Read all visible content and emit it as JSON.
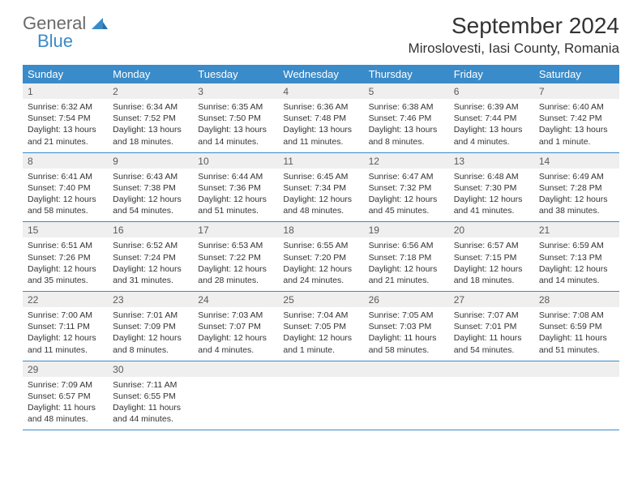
{
  "logo": {
    "general": "General",
    "blue": "Blue"
  },
  "title": "September 2024",
  "location": "Miroslovesti, Iasi County, Romania",
  "dayNames": [
    "Sunday",
    "Monday",
    "Tuesday",
    "Wednesday",
    "Thursday",
    "Friday",
    "Saturday"
  ],
  "colors": {
    "headerBar": "#3a8bc9",
    "dayNumBg": "#efefef",
    "text": "#333333",
    "logoGray": "#6a6a6a",
    "logoBlue": "#3a8bc9"
  },
  "weeks": [
    [
      {
        "n": "1",
        "sr": "6:32 AM",
        "ss": "7:54 PM",
        "dl": "13 hours and 21 minutes."
      },
      {
        "n": "2",
        "sr": "6:34 AM",
        "ss": "7:52 PM",
        "dl": "13 hours and 18 minutes."
      },
      {
        "n": "3",
        "sr": "6:35 AM",
        "ss": "7:50 PM",
        "dl": "13 hours and 14 minutes."
      },
      {
        "n": "4",
        "sr": "6:36 AM",
        "ss": "7:48 PM",
        "dl": "13 hours and 11 minutes."
      },
      {
        "n": "5",
        "sr": "6:38 AM",
        "ss": "7:46 PM",
        "dl": "13 hours and 8 minutes."
      },
      {
        "n": "6",
        "sr": "6:39 AM",
        "ss": "7:44 PM",
        "dl": "13 hours and 4 minutes."
      },
      {
        "n": "7",
        "sr": "6:40 AM",
        "ss": "7:42 PM",
        "dl": "13 hours and 1 minute."
      }
    ],
    [
      {
        "n": "8",
        "sr": "6:41 AM",
        "ss": "7:40 PM",
        "dl": "12 hours and 58 minutes."
      },
      {
        "n": "9",
        "sr": "6:43 AM",
        "ss": "7:38 PM",
        "dl": "12 hours and 54 minutes."
      },
      {
        "n": "10",
        "sr": "6:44 AM",
        "ss": "7:36 PM",
        "dl": "12 hours and 51 minutes."
      },
      {
        "n": "11",
        "sr": "6:45 AM",
        "ss": "7:34 PM",
        "dl": "12 hours and 48 minutes."
      },
      {
        "n": "12",
        "sr": "6:47 AM",
        "ss": "7:32 PM",
        "dl": "12 hours and 45 minutes."
      },
      {
        "n": "13",
        "sr": "6:48 AM",
        "ss": "7:30 PM",
        "dl": "12 hours and 41 minutes."
      },
      {
        "n": "14",
        "sr": "6:49 AM",
        "ss": "7:28 PM",
        "dl": "12 hours and 38 minutes."
      }
    ],
    [
      {
        "n": "15",
        "sr": "6:51 AM",
        "ss": "7:26 PM",
        "dl": "12 hours and 35 minutes."
      },
      {
        "n": "16",
        "sr": "6:52 AM",
        "ss": "7:24 PM",
        "dl": "12 hours and 31 minutes."
      },
      {
        "n": "17",
        "sr": "6:53 AM",
        "ss": "7:22 PM",
        "dl": "12 hours and 28 minutes."
      },
      {
        "n": "18",
        "sr": "6:55 AM",
        "ss": "7:20 PM",
        "dl": "12 hours and 24 minutes."
      },
      {
        "n": "19",
        "sr": "6:56 AM",
        "ss": "7:18 PM",
        "dl": "12 hours and 21 minutes."
      },
      {
        "n": "20",
        "sr": "6:57 AM",
        "ss": "7:15 PM",
        "dl": "12 hours and 18 minutes."
      },
      {
        "n": "21",
        "sr": "6:59 AM",
        "ss": "7:13 PM",
        "dl": "12 hours and 14 minutes."
      }
    ],
    [
      {
        "n": "22",
        "sr": "7:00 AM",
        "ss": "7:11 PM",
        "dl": "12 hours and 11 minutes."
      },
      {
        "n": "23",
        "sr": "7:01 AM",
        "ss": "7:09 PM",
        "dl": "12 hours and 8 minutes."
      },
      {
        "n": "24",
        "sr": "7:03 AM",
        "ss": "7:07 PM",
        "dl": "12 hours and 4 minutes."
      },
      {
        "n": "25",
        "sr": "7:04 AM",
        "ss": "7:05 PM",
        "dl": "12 hours and 1 minute."
      },
      {
        "n": "26",
        "sr": "7:05 AM",
        "ss": "7:03 PM",
        "dl": "11 hours and 58 minutes."
      },
      {
        "n": "27",
        "sr": "7:07 AM",
        "ss": "7:01 PM",
        "dl": "11 hours and 54 minutes."
      },
      {
        "n": "28",
        "sr": "7:08 AM",
        "ss": "6:59 PM",
        "dl": "11 hours and 51 minutes."
      }
    ],
    [
      {
        "n": "29",
        "sr": "7:09 AM",
        "ss": "6:57 PM",
        "dl": "11 hours and 48 minutes."
      },
      {
        "n": "30",
        "sr": "7:11 AM",
        "ss": "6:55 PM",
        "dl": "11 hours and 44 minutes."
      },
      null,
      null,
      null,
      null,
      null
    ]
  ],
  "labels": {
    "sunrise": "Sunrise: ",
    "sunset": "Sunset: ",
    "daylight": "Daylight: "
  }
}
